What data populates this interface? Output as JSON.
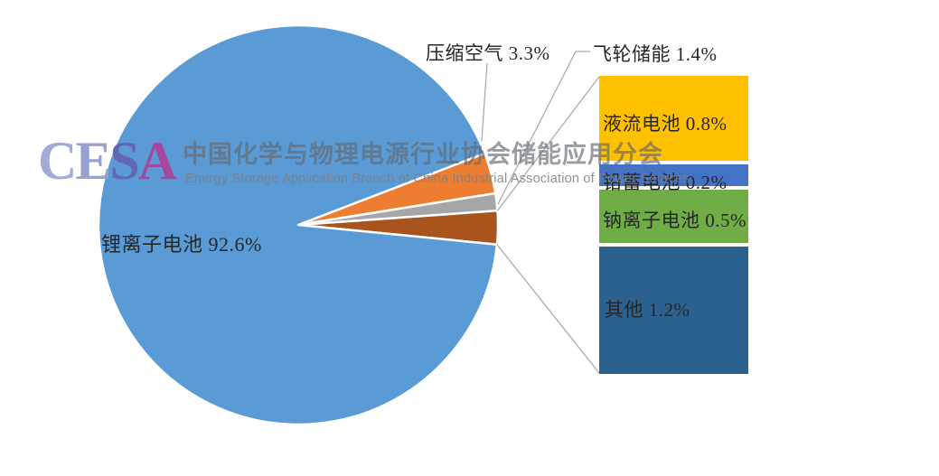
{
  "watermark": {
    "logo_letters": [
      "C",
      "E",
      "S",
      "A"
    ],
    "logo_colors": [
      "#A3ABD9",
      "#99A1D4",
      "#6366B3",
      "#A449A0"
    ],
    "title_cn": "中国化学与物理电源行业协会储能应用分会",
    "title_en": "Energy Storage Application Branch of China Industrial Association of Power Sources"
  },
  "chart_data": {
    "type": "pie",
    "variant": "bar-of-pie",
    "unit": "%",
    "background": "#FFFFFF",
    "legend": "none",
    "start_angle_deg": 21,
    "label_color": "#262626",
    "leader_line_color": "#A6A6A6",
    "main_slices": [
      {
        "name": "压缩空气",
        "value": 3.3,
        "label": "压缩空气 3.3%",
        "color": "#ED7D31"
      },
      {
        "name": "飞轮储能",
        "value": 1.4,
        "label": "飞轮储能 1.4%",
        "color": "#A6A6A6"
      },
      {
        "name": "bar-breakout-group",
        "value": 2.7,
        "is_group": true,
        "color": "#A8541C"
      },
      {
        "name": "锂离子电池",
        "value": 92.6,
        "label": "锂离子电池 92.6%",
        "color": "#5B9BD5"
      }
    ],
    "bar_slices": [
      {
        "name": "液流电池",
        "value": 0.8,
        "label": "液流电池 0.8%",
        "color": "#FFC000"
      },
      {
        "name": "铅蓄电池",
        "value": 0.2,
        "label": "铅蓄电池 0.2%",
        "color": "#4472C4"
      },
      {
        "name": "钠离子电池",
        "value": 0.5,
        "label": "钠离子电池 0.5%",
        "color": "#70AD47"
      },
      {
        "name": "其他",
        "value": 1.2,
        "label": "其他 1.2%",
        "color": "#2B618E"
      }
    ]
  }
}
